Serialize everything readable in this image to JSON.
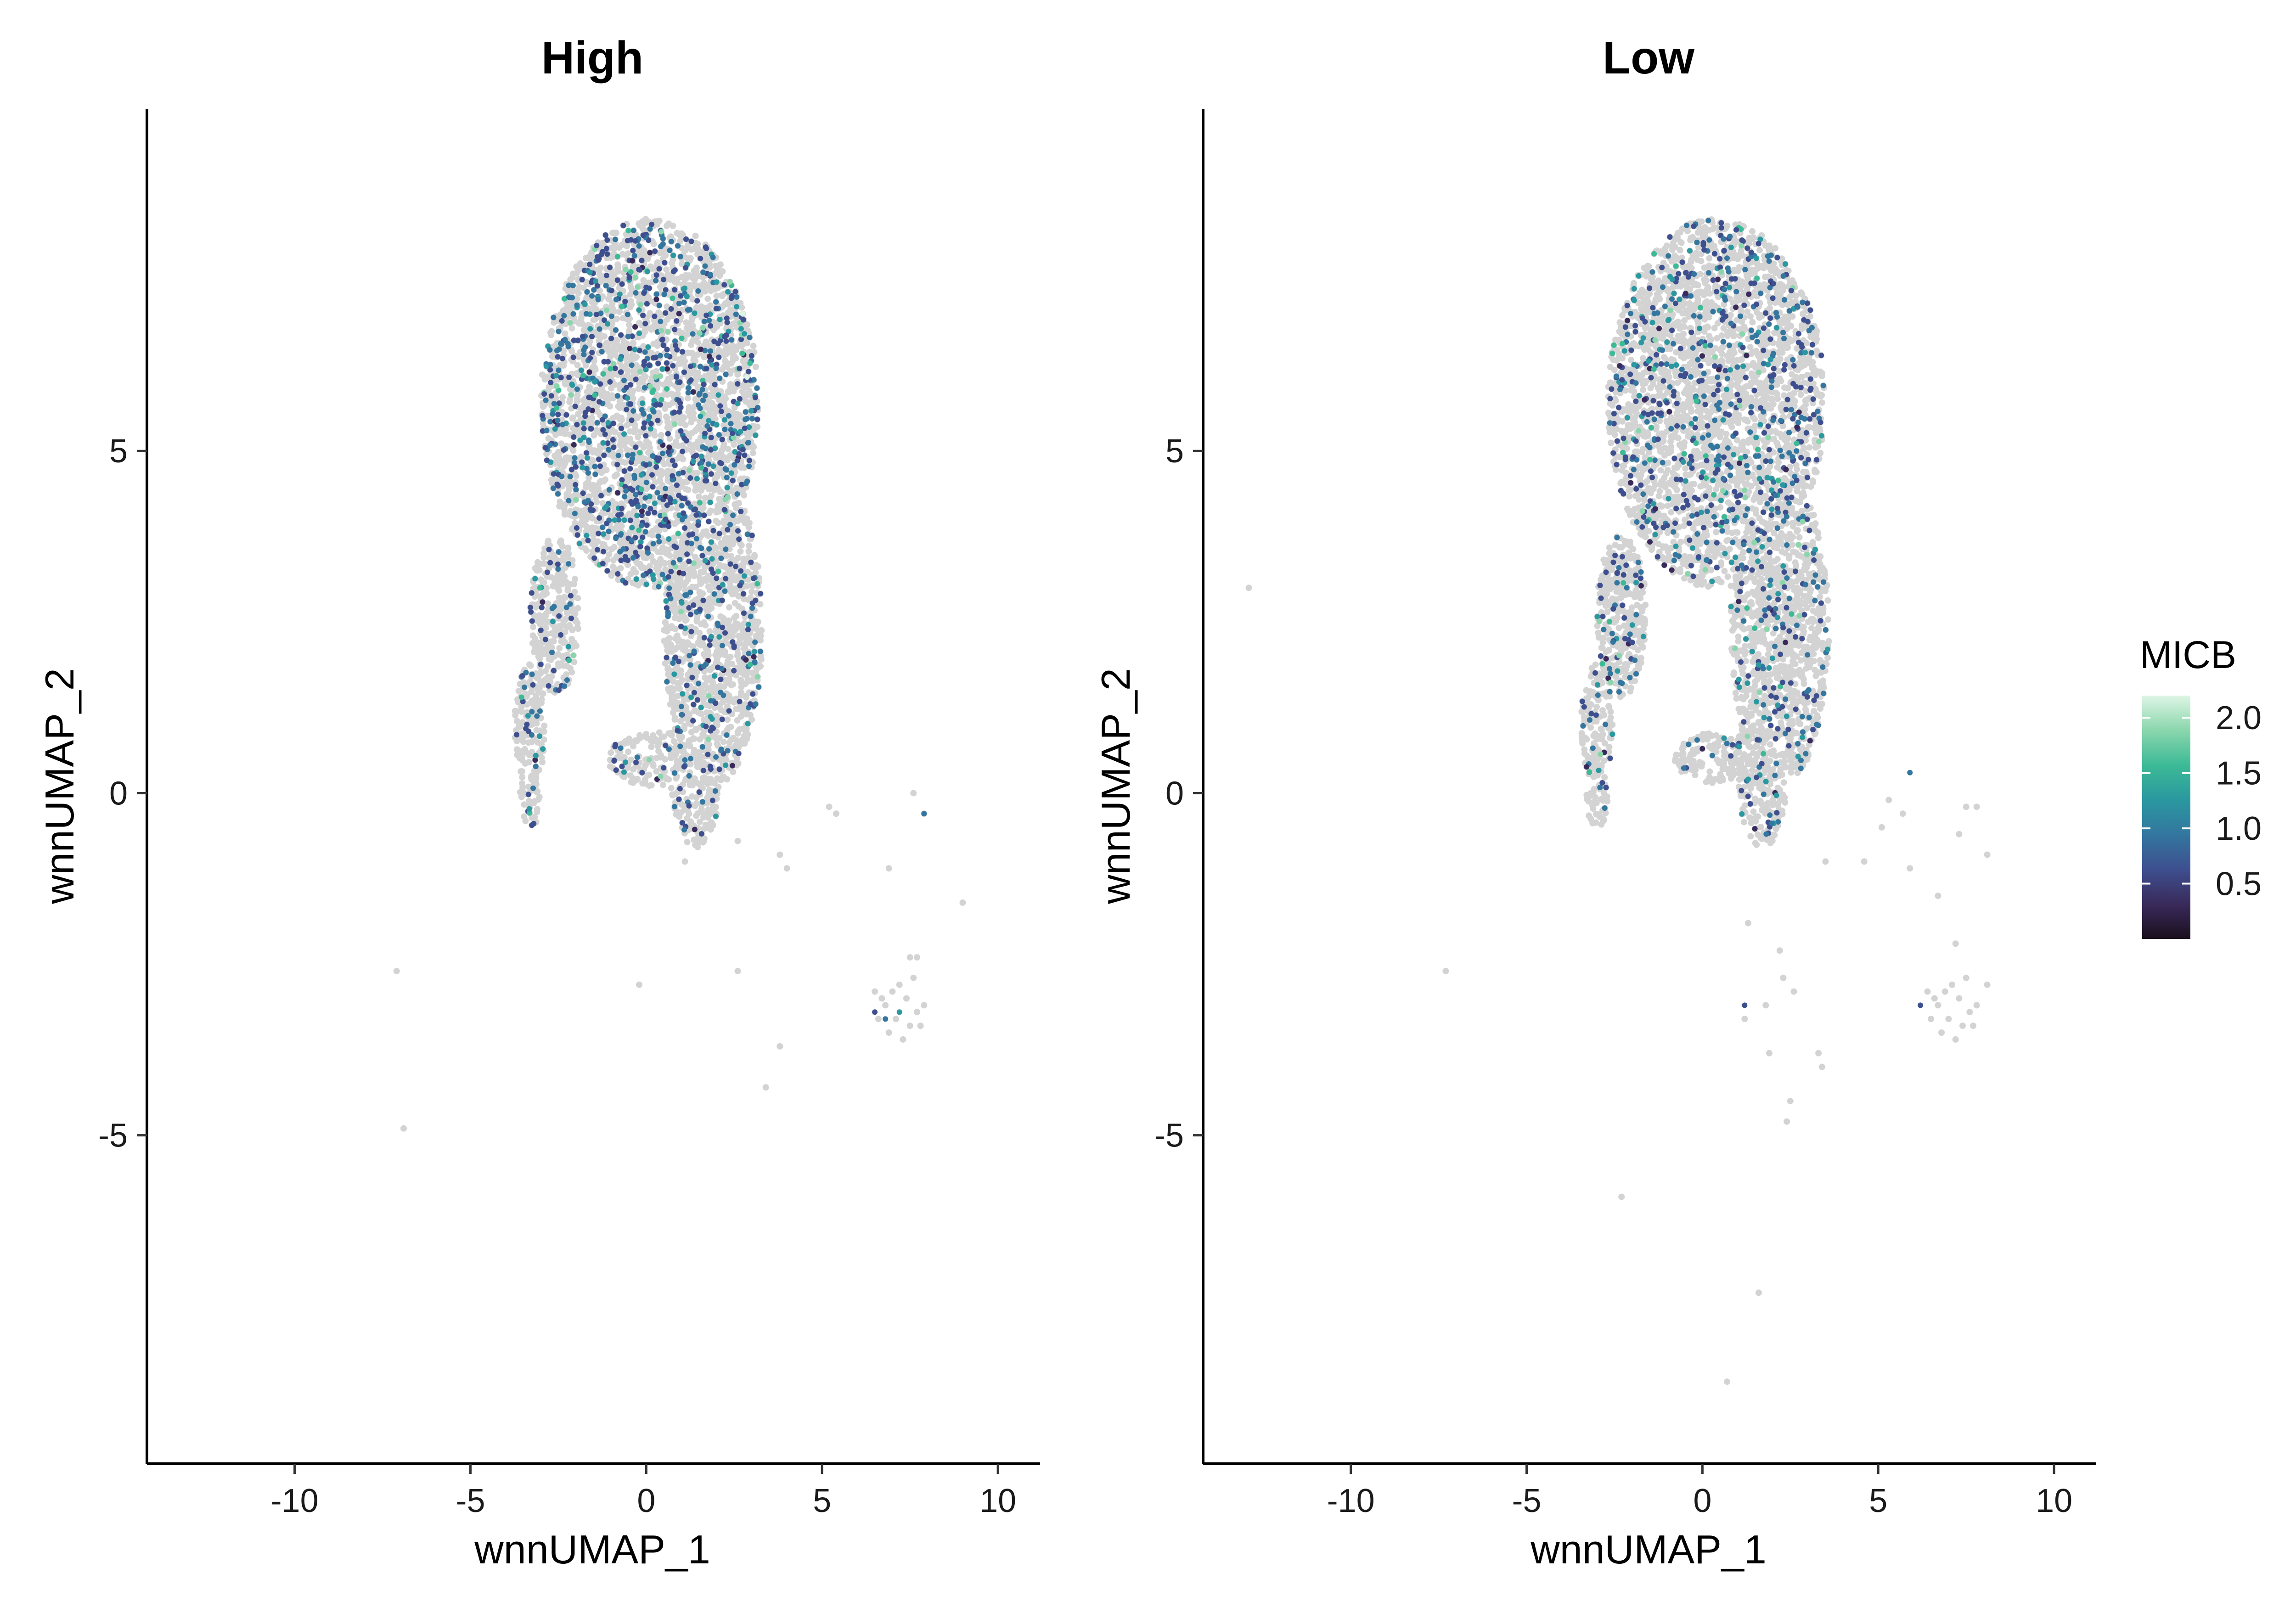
{
  "chart_data": {
    "type": "scatter",
    "panels": [
      {
        "id": "high",
        "title": "High",
        "xlabel": "wnnUMAP_1",
        "ylabel": "wnnUMAP_2",
        "xlim": [
          -14.2,
          11.2
        ],
        "ylim": [
          -9.8,
          10.0
        ],
        "xticks": [
          -10,
          -5,
          0,
          5,
          10
        ],
        "yticks": [
          -5,
          0,
          5
        ],
        "outlier_points": [
          [
            -7.1,
            -2.6
          ],
          [
            -6.9,
            -4.9
          ],
          [
            -0.2,
            -2.8
          ],
          [
            2.6,
            -2.6
          ],
          [
            3.8,
            -3.7
          ],
          [
            3.4,
            -4.3
          ],
          [
            4.0,
            -1.1
          ],
          [
            5.2,
            -0.2
          ],
          [
            5.4,
            -0.3
          ],
          [
            7.6,
            0.0
          ],
          [
            7.9,
            -0.3
          ],
          [
            9.0,
            -1.6
          ],
          [
            6.9,
            -1.1
          ],
          [
            7.5,
            -2.4
          ],
          [
            7.7,
            -2.4
          ],
          [
            1.1,
            -1.0
          ],
          [
            2.6,
            -0.7
          ],
          [
            3.8,
            -0.9
          ]
        ],
        "cluster_points": [
          [
            6.5,
            -2.9
          ],
          [
            6.8,
            -3.1
          ],
          [
            7.1,
            -3.3
          ],
          [
            7.4,
            -3.0
          ],
          [
            7.7,
            -3.2
          ],
          [
            6.9,
            -3.5
          ],
          [
            7.2,
            -2.8
          ],
          [
            7.5,
            -3.4
          ],
          [
            7.9,
            -3.1
          ],
          [
            6.6,
            -3.3
          ],
          [
            7.0,
            -2.9
          ],
          [
            7.3,
            -3.6
          ],
          [
            7.6,
            -2.7
          ],
          [
            6.7,
            -3.0
          ],
          [
            7.8,
            -3.4
          ]
        ],
        "expressing_points": [
          [
            7.9,
            -0.3
          ],
          [
            6.5,
            -3.2
          ],
          [
            7.2,
            -3.2
          ],
          [
            6.8,
            -3.3
          ]
        ]
      },
      {
        "id": "low",
        "title": "Low",
        "xlabel": "wnnUMAP_1",
        "ylabel": "wnnUMAP_2",
        "xlim": [
          -14.2,
          11.2
        ],
        "ylim": [
          -9.8,
          10.0
        ],
        "xticks": [
          -10,
          -5,
          0,
          5,
          10
        ],
        "yticks": [
          -5,
          0,
          5
        ],
        "outlier_points": [
          [
            -12.9,
            3.0
          ],
          [
            -7.3,
            -2.6
          ],
          [
            -2.3,
            -5.9
          ],
          [
            1.6,
            -7.3
          ],
          [
            0.7,
            -8.6
          ],
          [
            2.5,
            -4.5
          ],
          [
            2.3,
            -2.7
          ],
          [
            3.3,
            -3.8
          ],
          [
            3.4,
            -4.0
          ],
          [
            1.3,
            -1.9
          ],
          [
            3.5,
            -1.0
          ],
          [
            4.6,
            -1.0
          ],
          [
            5.1,
            -0.5
          ],
          [
            5.3,
            -0.1
          ],
          [
            5.7,
            -0.3
          ],
          [
            5.9,
            -1.1
          ],
          [
            6.7,
            -1.5
          ],
          [
            7.5,
            -0.2
          ],
          [
            7.8,
            -0.2
          ],
          [
            8.1,
            -0.9
          ],
          [
            7.3,
            -0.6
          ],
          [
            7.2,
            -2.2
          ],
          [
            8.1,
            -2.8
          ],
          [
            2.2,
            -2.3
          ],
          [
            2.6,
            -2.9
          ],
          [
            1.8,
            -3.1
          ],
          [
            1.2,
            -3.3
          ],
          [
            1.9,
            -3.8
          ],
          [
            2.4,
            -4.8
          ]
        ],
        "cluster_points": [
          [
            6.4,
            -2.9
          ],
          [
            6.7,
            -3.1
          ],
          [
            7.0,
            -3.3
          ],
          [
            7.3,
            -3.0
          ],
          [
            7.6,
            -3.2
          ],
          [
            6.8,
            -3.5
          ],
          [
            7.1,
            -2.8
          ],
          [
            7.4,
            -3.4
          ],
          [
            7.8,
            -3.1
          ],
          [
            6.5,
            -3.3
          ],
          [
            6.9,
            -2.9
          ],
          [
            7.2,
            -3.6
          ],
          [
            7.5,
            -2.7
          ],
          [
            6.6,
            -3.0
          ],
          [
            7.7,
            -3.4
          ]
        ],
        "expressing_points": [
          [
            5.9,
            0.3
          ],
          [
            1.2,
            -3.1
          ],
          [
            6.2,
            -3.1
          ]
        ]
      }
    ],
    "colorbar": {
      "title": "MICB",
      "range": [
        0,
        2.2
      ],
      "ticks": [
        "0.5",
        "1.0",
        "1.5",
        "2.0"
      ],
      "colors": [
        "#1a0f1d",
        "#392a5b",
        "#3e4f8f",
        "#33769f",
        "#2a98a0",
        "#3cba96",
        "#8ad6ac",
        "#def5e5"
      ]
    },
    "background_color": "#d3d3d3"
  }
}
